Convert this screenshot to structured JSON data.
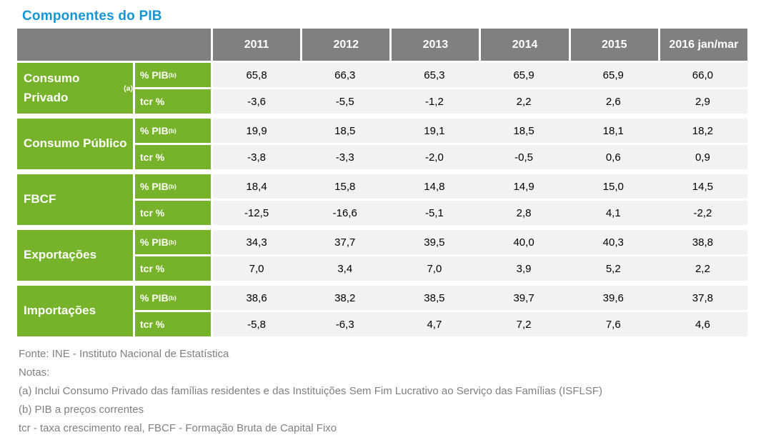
{
  "page": {
    "title": "Componentes do PIB"
  },
  "chart_data": {
    "type": "table",
    "title": "Componentes do PIB",
    "columns": [
      "2011",
      "2012",
      "2013",
      "2014",
      "2015",
      "2016 jan/mar"
    ],
    "metrics": [
      {
        "label": "% PIB",
        "sup": "(b)"
      },
      {
        "label": "tcr %",
        "sup": ""
      }
    ],
    "row_groups": [
      {
        "label": "Consumo Privado",
        "sup": "(a)",
        "pct_pib": [
          "65,8",
          "66,3",
          "65,3",
          "65,9",
          "65,9",
          "66,0"
        ],
        "tcr": [
          "-3,6",
          "-5,5",
          "-1,2",
          "2,2",
          "2,6",
          "2,9"
        ]
      },
      {
        "label": "Consumo Público",
        "sup": "",
        "pct_pib": [
          "19,9",
          "18,5",
          "19,1",
          "18,5",
          "18,1",
          "18,2"
        ],
        "tcr": [
          "-3,8",
          "-3,3",
          "-2,0",
          "-0,5",
          "0,6",
          "0,9"
        ]
      },
      {
        "label": "FBCF",
        "sup": "",
        "pct_pib": [
          "18,4",
          "15,8",
          "14,8",
          "14,9",
          "15,0",
          "14,5"
        ],
        "tcr": [
          "-12,5",
          "-16,6",
          "-5,1",
          "2,8",
          "4,1",
          "-2,2"
        ]
      },
      {
        "label": "Exportações",
        "sup": "",
        "pct_pib": [
          "34,3",
          "37,7",
          "39,5",
          "40,0",
          "40,3",
          "38,8"
        ],
        "tcr": [
          "7,0",
          "3,4",
          "7,0",
          "3,9",
          "5,2",
          "2,2"
        ]
      },
      {
        "label": "Importações",
        "sup": "",
        "pct_pib": [
          "38,6",
          "38,2",
          "38,5",
          "39,7",
          "39,6",
          "37,8"
        ],
        "tcr": [
          "-5,8",
          "-6,3",
          "4,7",
          "7,2",
          "7,6",
          "4,6"
        ]
      }
    ]
  },
  "footer": {
    "lines": [
      "Fonte: INE - Instituto Nacional de Estatística",
      "Notas:",
      "(a) Inclui Consumo Privado das famílias residentes e das Instituições Sem Fim Lucrativo ao Serviço das Famílias (ISFLSF)",
      "(b) PIB a preços correntes",
      "tcr - taxa crescimento real, FBCF - Formação Bruta de Capital Fixo"
    ]
  },
  "colors": {
    "title_blue": "#1496D4",
    "header_gray": "#808080",
    "row_green": "#76B22A",
    "cell_bg": "#F2F2F2",
    "note_gray": "#808080",
    "value_text": "#000000"
  }
}
